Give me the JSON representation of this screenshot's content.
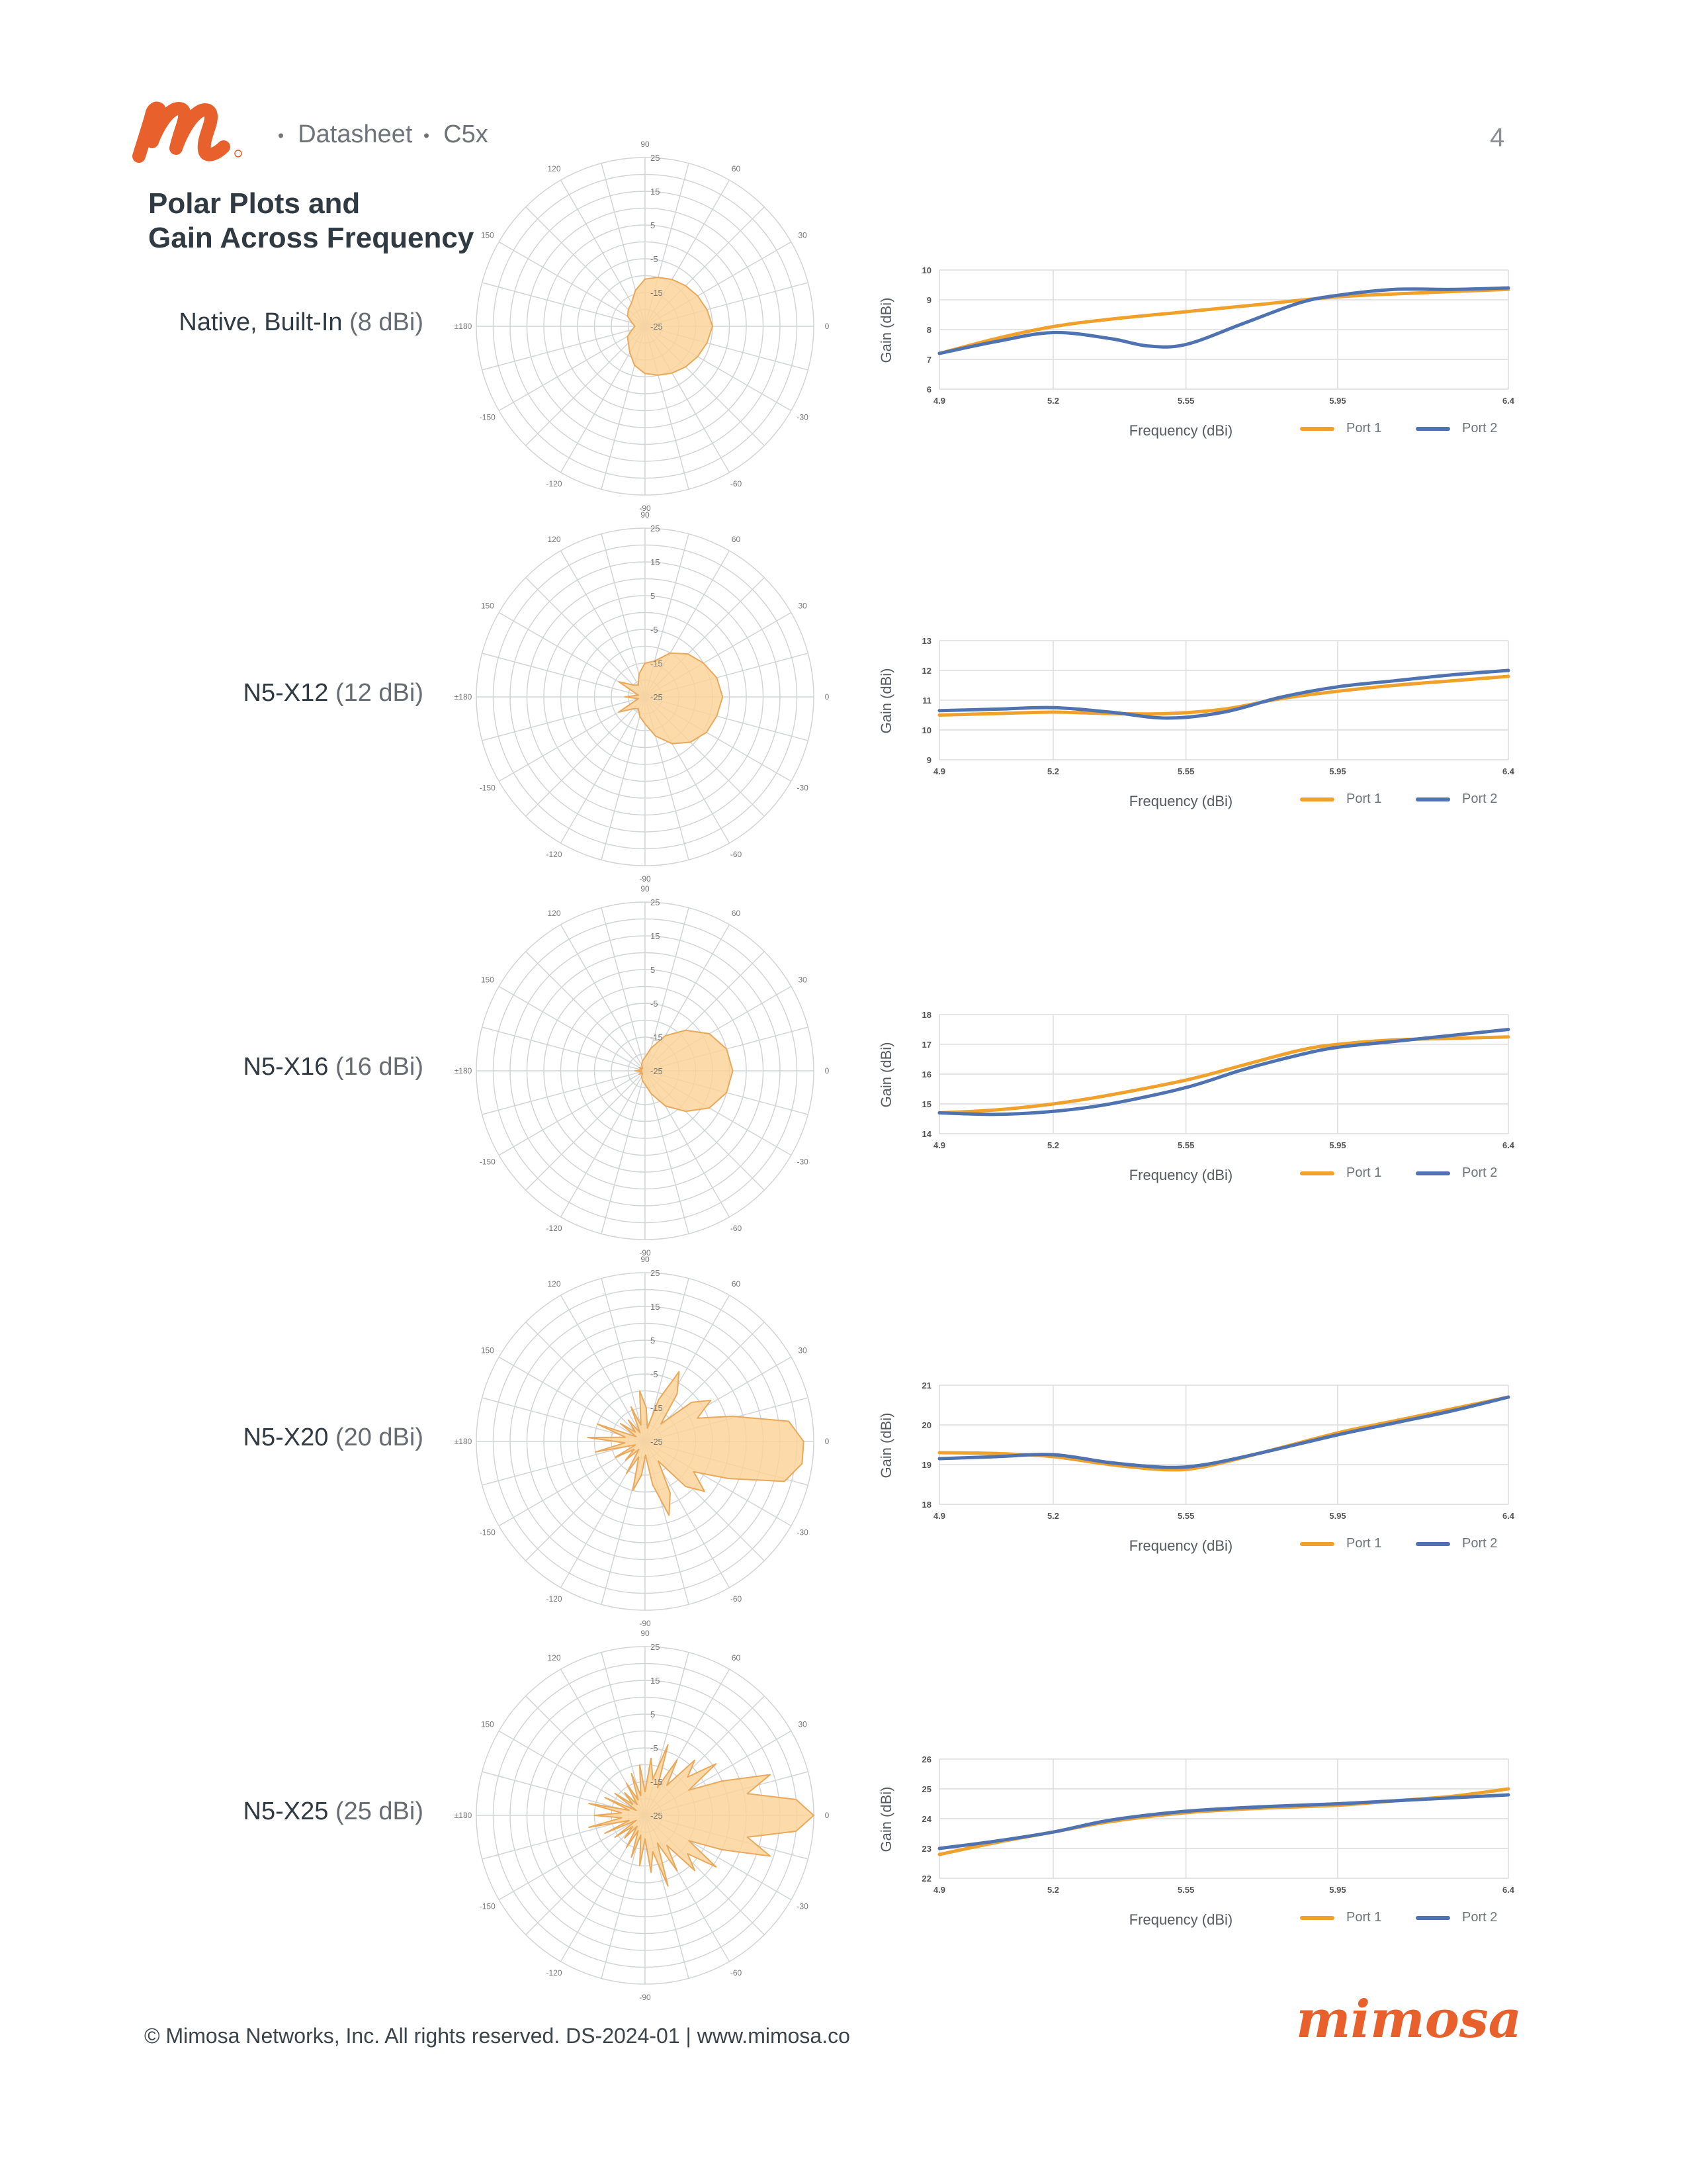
{
  "header": {
    "doc_type": "Datasheet",
    "product": "C5x",
    "page_number": "4"
  },
  "title": {
    "line1": "Polar Plots and",
    "line2": "Gain Across Frequency"
  },
  "colors": {
    "brand_orange": "#e8612c",
    "port1": "#f0a12c",
    "port2": "#4f72b0",
    "polar_fill": "#fcd39a",
    "polar_stroke": "#e9a85a"
  },
  "polar_common": {
    "angle_labels": [
      "90",
      "60",
      "30",
      "0",
      "-30",
      "-60",
      "-90",
      "-120",
      "-150",
      "±180",
      "150",
      "120"
    ],
    "ring_labels": [
      "25",
      "15",
      "5",
      "-5",
      "-15",
      "-25"
    ]
  },
  "rows": [
    {
      "name": "Native, Built-In",
      "spec": "(8 dBi)",
      "ylabel": "Gain (dBi)",
      "xlabel": "Frequency (dBi)",
      "legend": [
        "Port 1",
        "Port 2"
      ],
      "polar_pattern": {
        "angles_deg": [
          0,
          15,
          30,
          45,
          60,
          75,
          90,
          105,
          120,
          135,
          150,
          165,
          180,
          195,
          210,
          225,
          240,
          255,
          270,
          285,
          300,
          315,
          330,
          345
        ],
        "gain_db": [
          -5,
          -6,
          -7,
          -8,
          -9,
          -10,
          -11,
          -14,
          -17,
          -18,
          -19,
          -21,
          -22,
          -21,
          -19,
          -18,
          -16,
          -13,
          -11,
          -10,
          -9,
          -8,
          -7,
          -6
        ]
      },
      "chart_data": {
        "type": "line",
        "x_ticks": [
          "4.9",
          "5.2",
          "5.55",
          "5.95",
          "6.4"
        ],
        "y_ticks": [
          "10",
          "9",
          "8",
          "7",
          "6"
        ],
        "xlim": [
          4.9,
          6.4
        ],
        "ylim": [
          6,
          10
        ],
        "series": [
          {
            "name": "Port 1",
            "x": [
              4.9,
              5.05,
              5.2,
              5.35,
              5.55,
              5.75,
              5.95,
              6.2,
              6.4
            ],
            "values": [
              7.2,
              7.7,
              8.1,
              8.35,
              8.6,
              8.85,
              9.1,
              9.25,
              9.35
            ]
          },
          {
            "name": "Port 2",
            "x": [
              4.9,
              5.05,
              5.2,
              5.35,
              5.45,
              5.55,
              5.7,
              5.85,
              5.95,
              6.1,
              6.25,
              6.4
            ],
            "values": [
              7.2,
              7.6,
              7.9,
              7.7,
              7.45,
              7.5,
              8.2,
              8.9,
              9.15,
              9.35,
              9.35,
              9.4
            ]
          }
        ]
      }
    },
    {
      "name": "N5-X12",
      "spec": "(12 dBi)",
      "ylabel": "Gain (dBi)",
      "xlabel": "Frequency (dBi)",
      "legend": [
        "Port 1",
        "Port 2"
      ],
      "polar_pattern": {
        "angles_deg": [
          0,
          15,
          30,
          45,
          60,
          75,
          90,
          105,
          120,
          135,
          150,
          165,
          180,
          195,
          210,
          225,
          240,
          255,
          270,
          285,
          300,
          315,
          330,
          345
        ],
        "gain_db": [
          -2,
          -3,
          -5,
          -7,
          -10,
          -14,
          -15,
          -18,
          -21,
          -20,
          -16,
          -23,
          -19,
          -23,
          -16,
          -20,
          -21,
          -19,
          -17,
          -13,
          -9,
          -6,
          -4,
          -3
        ]
      },
      "chart_data": {
        "type": "line",
        "x_ticks": [
          "4.9",
          "5.2",
          "5.55",
          "5.95",
          "6.4"
        ],
        "y_ticks": [
          "13",
          "12",
          "11",
          "10",
          "9"
        ],
        "xlim": [
          4.9,
          6.4
        ],
        "ylim": [
          9,
          13
        ],
        "series": [
          {
            "name": "Port 1",
            "x": [
              4.9,
              5.05,
              5.2,
              5.35,
              5.5,
              5.65,
              5.8,
              5.95,
              6.1,
              6.25,
              6.4
            ],
            "values": [
              10.5,
              10.55,
              10.6,
              10.55,
              10.55,
              10.7,
              11.05,
              11.3,
              11.5,
              11.65,
              11.8
            ]
          },
          {
            "name": "Port 2",
            "x": [
              4.9,
              5.05,
              5.2,
              5.35,
              5.5,
              5.65,
              5.8,
              5.95,
              6.1,
              6.25,
              6.4
            ],
            "values": [
              10.65,
              10.7,
              10.75,
              10.6,
              10.4,
              10.6,
              11.1,
              11.45,
              11.65,
              11.85,
              12.0
            ]
          }
        ]
      }
    },
    {
      "name": "N5-X16",
      "spec": "(16 dBi)",
      "ylabel": "Gain (dBi)",
      "xlabel": "Frequency (dBi)",
      "legend": [
        "Port 1",
        "Port 2"
      ],
      "polar_pattern": {
        "angles_deg": [
          0,
          15,
          30,
          45,
          60,
          75,
          90,
          105,
          120,
          135,
          150,
          165,
          180,
          195,
          210,
          225,
          240,
          255,
          270,
          285,
          300,
          315,
          330,
          345
        ],
        "gain_db": [
          1,
          0,
          -3,
          -8,
          -13,
          -18,
          -21,
          -22,
          -23,
          -24,
          -23,
          -24,
          -22,
          -24,
          -23,
          -24,
          -23,
          -22,
          -21,
          -18,
          -13,
          -8,
          -3,
          0
        ]
      },
      "chart_data": {
        "type": "line",
        "x_ticks": [
          "4.9",
          "5.2",
          "5.55",
          "5.95",
          "6.4"
        ],
        "y_ticks": [
          "18",
          "17",
          "16",
          "15",
          "14"
        ],
        "xlim": [
          4.9,
          6.4
        ],
        "ylim": [
          14,
          18
        ],
        "series": [
          {
            "name": "Port 1",
            "x": [
              4.9,
              5.05,
              5.2,
              5.35,
              5.55,
              5.7,
              5.85,
              5.95,
              6.1,
              6.25,
              6.4
            ],
            "values": [
              14.7,
              14.8,
              15.0,
              15.3,
              15.8,
              16.3,
              16.8,
              17.0,
              17.15,
              17.2,
              17.25
            ]
          },
          {
            "name": "Port 2",
            "x": [
              4.9,
              5.05,
              5.2,
              5.35,
              5.55,
              5.7,
              5.85,
              5.95,
              6.1,
              6.25,
              6.4
            ],
            "values": [
              14.7,
              14.65,
              14.75,
              15.0,
              15.55,
              16.15,
              16.65,
              16.9,
              17.1,
              17.3,
              17.5
            ]
          }
        ]
      }
    },
    {
      "name": "N5-X20",
      "spec": "(20 dBi)",
      "ylabel": "Gain (dBi)",
      "xlabel": "Frequency (dBi)",
      "legend": [
        "Port 1",
        "Port 2"
      ],
      "polar_pattern": {
        "angles_deg": [
          0,
          8,
          16,
          24,
          32,
          40,
          48,
          56,
          64,
          72,
          80,
          88,
          96,
          104,
          112,
          120,
          128,
          136,
          144,
          152,
          160,
          168,
          176,
          184,
          192,
          200,
          208,
          216,
          224,
          232,
          240,
          248,
          256,
          264,
          272,
          280,
          288,
          296,
          304,
          312,
          320,
          328,
          336,
          344,
          352
        ],
        "gain_db": [
          22,
          18,
          2,
          -8,
          -2,
          -7,
          -18,
          -8,
          -2,
          -12,
          -21,
          -15,
          -10,
          -20,
          -14,
          -22,
          -17,
          -21,
          -16,
          -22,
          -10,
          -19,
          -8,
          -19,
          -10,
          -22,
          -15,
          -21,
          -17,
          -22,
          -14,
          -20,
          -10,
          -15,
          -21,
          -12,
          -2,
          -8,
          -18,
          -7,
          -2,
          -8,
          2,
          18,
          22
        ]
      },
      "chart_data": {
        "type": "line",
        "x_ticks": [
          "4.9",
          "5.2",
          "5.55",
          "5.95",
          "6.4"
        ],
        "y_ticks": [
          "21",
          "20",
          "19",
          "18"
        ],
        "xlim": [
          4.9,
          6.4
        ],
        "ylim": [
          18,
          21
        ],
        "series": [
          {
            "name": "Port 1",
            "x": [
              4.9,
              5.05,
              5.2,
              5.35,
              5.5,
              5.6,
              5.75,
              5.95,
              6.1,
              6.25,
              6.4
            ],
            "values": [
              19.3,
              19.28,
              19.2,
              19.0,
              18.87,
              18.95,
              19.3,
              19.8,
              20.1,
              20.4,
              20.7
            ]
          },
          {
            "name": "Port 2",
            "x": [
              4.9,
              5.05,
              5.2,
              5.35,
              5.5,
              5.6,
              5.75,
              5.95,
              6.1,
              6.25,
              6.4
            ],
            "values": [
              19.15,
              19.2,
              19.25,
              19.05,
              18.93,
              19.0,
              19.3,
              19.75,
              20.05,
              20.35,
              20.7
            ]
          }
        ]
      }
    },
    {
      "name": "N5-X25",
      "spec": "(25 dBi)",
      "ylabel": "Gain (dBi)",
      "xlabel": "Frequency (dBi)",
      "legend": [
        "Port 1",
        "Port 2"
      ],
      "polar_pattern": {
        "angles_deg": [
          0,
          6,
          12,
          18,
          24,
          30,
          36,
          42,
          48,
          54,
          60,
          66,
          72,
          78,
          84,
          90,
          96,
          102,
          108,
          114,
          120,
          126,
          132,
          138,
          144,
          150,
          156,
          162,
          168,
          174,
          180,
          186,
          192,
          198,
          204,
          210,
          216,
          222,
          228,
          234,
          240,
          246,
          252,
          258,
          264,
          270,
          276,
          282,
          288,
          294,
          300,
          306,
          312,
          318,
          324,
          330,
          336,
          342,
          348,
          354
        ],
        "gain_db": [
          27,
          20,
          6,
          14,
          0,
          -10,
          1,
          -8,
          -3,
          -14,
          -6,
          -16,
          -3,
          -14,
          -8,
          -18,
          -10,
          -19,
          -12,
          -20,
          -14,
          -21,
          -16,
          -20,
          -14,
          -22,
          -12,
          -20,
          -8,
          -18,
          -10,
          -18,
          -8,
          -20,
          -12,
          -22,
          -14,
          -20,
          -16,
          -21,
          -14,
          -20,
          -12,
          -19,
          -10,
          -18,
          -8,
          -14,
          -3,
          -16,
          -6,
          -14,
          -3,
          -8,
          1,
          -10,
          0,
          14,
          6,
          20
        ]
      },
      "chart_data": {
        "type": "line",
        "x_ticks": [
          "4.9",
          "5.2",
          "5.55",
          "5.95",
          "6.4"
        ],
        "y_ticks": [
          "26",
          "25",
          "24",
          "23",
          "22"
        ],
        "xlim": [
          4.9,
          6.4
        ],
        "ylim": [
          22,
          26
        ],
        "series": [
          {
            "name": "Port 1",
            "x": [
              4.9,
              5.05,
              5.2,
              5.35,
              5.55,
              5.75,
              5.95,
              6.1,
              6.25,
              6.4
            ],
            "values": [
              22.8,
              23.2,
              23.55,
              23.9,
              24.2,
              24.35,
              24.45,
              24.6,
              24.75,
              25.0
            ]
          },
          {
            "name": "Port 2",
            "x": [
              4.9,
              5.05,
              5.2,
              5.35,
              5.55,
              5.75,
              5.95,
              6.1,
              6.25,
              6.4
            ],
            "values": [
              23.0,
              23.25,
              23.55,
              23.95,
              24.25,
              24.4,
              24.5,
              24.6,
              24.7,
              24.8
            ]
          }
        ]
      }
    }
  ],
  "footer": {
    "text": "© Mimosa Networks, Inc. All rights reserved. DS-2024-01 | www.mimosa.co",
    "brand": "mimosa"
  }
}
